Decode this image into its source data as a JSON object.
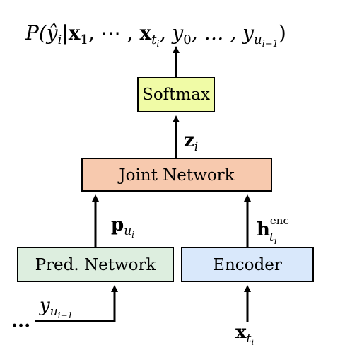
{
  "diagram": {
    "output_label": {
      "prefix": "P(",
      "yhat": "ŷ",
      "yhat_sub": "i",
      "bar": "|",
      "x1": "x",
      "x1_sub": "1",
      "mid_dots": ", ⋯ , ",
      "xt": "x",
      "xt_sub": "t",
      "xt_subsub": "i",
      "comma_y0": ", y",
      "y0_sub": "0",
      "ellipsis": ", … , y",
      "yu_sub": "u",
      "yu_subsub": "i−1",
      "suffix": ")"
    },
    "boxes": {
      "softmax": {
        "label": "Softmax",
        "color": "#f0fba6"
      },
      "joint": {
        "label": "Joint Network",
        "color": "#f7c9ae"
      },
      "pred": {
        "label": "Pred. Network",
        "color": "#ddeedf"
      },
      "encoder": {
        "label": "Encoder",
        "color": "#d9e8fb"
      }
    },
    "edge_labels": {
      "z": "z",
      "z_sub": "i",
      "p": "p",
      "p_sub": "u",
      "p_subsub": "i",
      "h": "h",
      "h_sup": "enc",
      "h_sub": "t",
      "h_subsub": "i",
      "y_in": "y",
      "y_in_sub": "u",
      "y_in_subsub": "i−1",
      "x_in": "x",
      "x_in_sub": "t",
      "x_in_subsub": "i",
      "dots": "..."
    }
  }
}
